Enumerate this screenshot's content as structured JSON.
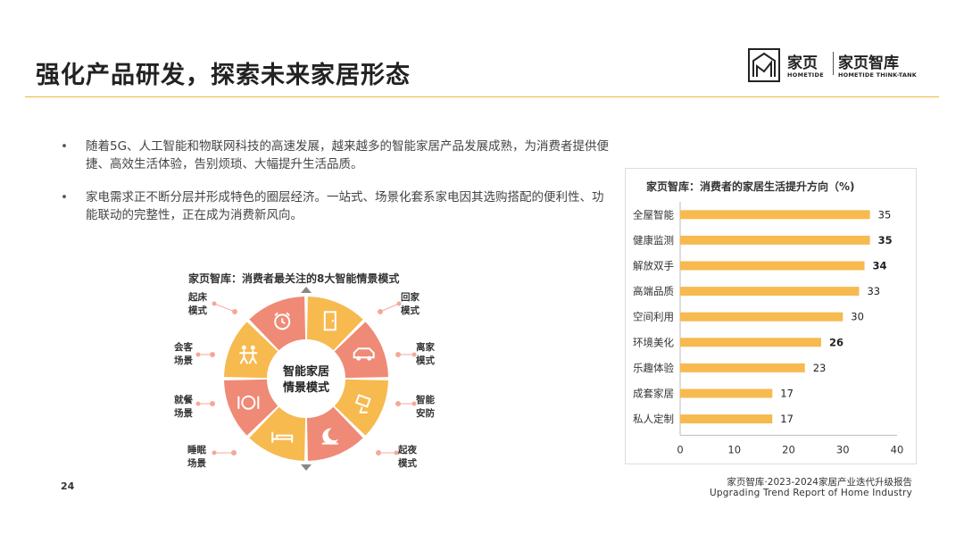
{
  "header": {
    "title": "强化产品研发，探索未来家居形态"
  },
  "logo": {
    "brand_cn": "家页",
    "brand_en": "HOMETIDE",
    "think_cn": "家页智库",
    "think_en": "HOMETIDE THINK-TANK"
  },
  "bullets": [
    "随着5G、人工智能和物联网科技的高速发展，越来越多的智能家居产品发展成熟，为消费者提供便捷、高效生活体验，告别烦琐、大幅提升生活品质。",
    "家电需求正不断分层并形成特色的圈层经济。一站式、场景化套系家电因其选购搭配的便利性、功能联动的完整性，正在成为消费新风向。"
  ],
  "wheel": {
    "title": "家页智库：消费者最关注的8大智能情景模式",
    "center_line1": "智能家居",
    "center_line2": "情景模式",
    "modes": [
      {
        "line1": "起床",
        "line2": "模式",
        "icon": "alarm-clock-icon"
      },
      {
        "line1": "回家",
        "line2": "模式",
        "icon": "door-icon"
      },
      {
        "line1": "离家",
        "line2": "模式",
        "icon": "car-icon"
      },
      {
        "line1": "智能",
        "line2": "安防",
        "icon": "camera-icon"
      },
      {
        "line1": "起夜",
        "line2": "模式",
        "icon": "moon-icon"
      },
      {
        "line1": "睡眠",
        "line2": "场景",
        "icon": "bed-icon"
      },
      {
        "line1": "就餐",
        "line2": "场景",
        "icon": "dining-icon"
      },
      {
        "line1": "会客",
        "line2": "场景",
        "icon": "people-icon"
      }
    ],
    "colors": {
      "coral": "#ef8a76",
      "orange": "#f6ba4f",
      "dot": "#f4a89a"
    }
  },
  "chart_data": {
    "type": "bar",
    "orientation": "horizontal",
    "title": "家页智库：消费者的家居生活提升方向（%)",
    "categories": [
      "全屋智能",
      "健康监测",
      "解放双手",
      "高端品质",
      "空间利用",
      "环境美化",
      "乐趣体验",
      "成套家居",
      "私人定制"
    ],
    "values": [
      35,
      35,
      34,
      33,
      30,
      26,
      23,
      17,
      17
    ],
    "bold_labels": [
      false,
      true,
      true,
      false,
      false,
      true,
      false,
      false,
      false
    ],
    "xlim": [
      0,
      40
    ],
    "xticks": [
      0,
      10,
      20,
      30,
      40
    ],
    "grid": false,
    "bar_color": "#f6ba4f"
  },
  "footer": {
    "page_number": "24",
    "line1": "家页智库·2023-2024家居产业迭代升级报告",
    "line2": "Upgrading Trend Report of Home Industry"
  }
}
